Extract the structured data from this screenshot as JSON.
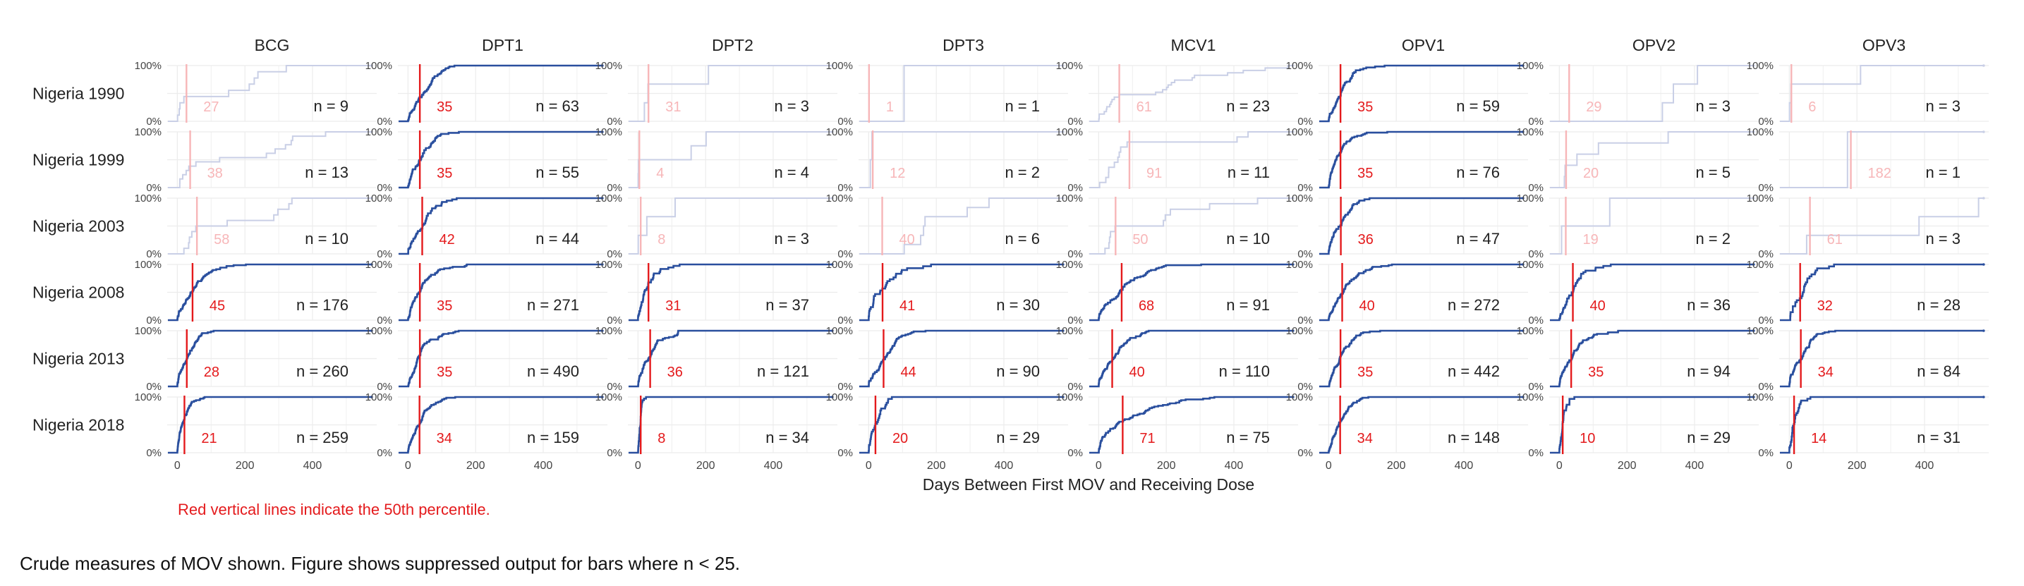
{
  "chart_data": {
    "type": "line",
    "subtype": "cumulative-step-small-multiples",
    "xlabel": "Days Between First MOV and Receiving Dose",
    "ylabel": "",
    "xlim": [
      -30,
      590
    ],
    "ylim": [
      0,
      1
    ],
    "x_ticks": [
      0,
      200,
      400
    ],
    "y_ticks": [
      {
        "value": 0,
        "label": "0%"
      },
      {
        "value": 1,
        "label": "100%"
      }
    ],
    "grid": true,
    "suppression_threshold": 25,
    "colors": {
      "line": "#2a4f9e",
      "line_suppressed": "#c9cfe6",
      "median": "#e41a1c",
      "median_suppressed": "#f7b6b8",
      "grid": "#ececec"
    },
    "vaccines": [
      "BCG",
      "DPT1",
      "DPT2",
      "DPT3",
      "MCV1",
      "OPV1",
      "OPV2",
      "OPV3"
    ],
    "surveys": [
      "Nigeria 1990",
      "Nigeria 1999",
      "Nigeria 2003",
      "Nigeria 2008",
      "Nigeria 2013",
      "Nigeria 2018"
    ],
    "panels": [
      [
        {
          "median": 27,
          "n": 9
        },
        {
          "median": 35,
          "n": 63
        },
        {
          "median": 31,
          "n": 3
        },
        {
          "median": 1,
          "n": 1
        },
        {
          "median": 61,
          "n": 23
        },
        {
          "median": 35,
          "n": 59
        },
        {
          "median": 29,
          "n": 3
        },
        {
          "median": 6,
          "n": 3
        }
      ],
      [
        {
          "median": 38,
          "n": 13
        },
        {
          "median": 35,
          "n": 55
        },
        {
          "median": 4,
          "n": 4
        },
        {
          "median": 12,
          "n": 2
        },
        {
          "median": 91,
          "n": 11
        },
        {
          "median": 35,
          "n": 76
        },
        {
          "median": 20,
          "n": 5
        },
        {
          "median": 182,
          "n": 1
        }
      ],
      [
        {
          "median": 58,
          "n": 10
        },
        {
          "median": 42,
          "n": 44
        },
        {
          "median": 8,
          "n": 3
        },
        {
          "median": 40,
          "n": 6
        },
        {
          "median": 50,
          "n": 10
        },
        {
          "median": 36,
          "n": 47
        },
        {
          "median": 19,
          "n": 2
        },
        {
          "median": 61,
          "n": 3
        }
      ],
      [
        {
          "median": 45,
          "n": 176
        },
        {
          "median": 35,
          "n": 271
        },
        {
          "median": 31,
          "n": 37
        },
        {
          "median": 41,
          "n": 30
        },
        {
          "median": 68,
          "n": 91
        },
        {
          "median": 40,
          "n": 272
        },
        {
          "median": 40,
          "n": 36
        },
        {
          "median": 32,
          "n": 28
        }
      ],
      [
        {
          "median": 28,
          "n": 260
        },
        {
          "median": 35,
          "n": 490
        },
        {
          "median": 36,
          "n": 121
        },
        {
          "median": 44,
          "n": 90
        },
        {
          "median": 40,
          "n": 110
        },
        {
          "median": 35,
          "n": 442
        },
        {
          "median": 35,
          "n": 94
        },
        {
          "median": 34,
          "n": 84
        }
      ],
      [
        {
          "median": 21,
          "n": 259
        },
        {
          "median": 34,
          "n": 159
        },
        {
          "median": 8,
          "n": 34
        },
        {
          "median": 20,
          "n": 29
        },
        {
          "median": 71,
          "n": 75
        },
        {
          "median": 34,
          "n": 148
        },
        {
          "median": 10,
          "n": 29
        },
        {
          "median": 14,
          "n": 31
        }
      ]
    ],
    "n_prefix": "n = ",
    "annotation": "Red vertical lines indicate the 50th percentile."
  },
  "caption": "Crude measures of MOV shown. Figure shows suppressed output for bars where n < 25."
}
